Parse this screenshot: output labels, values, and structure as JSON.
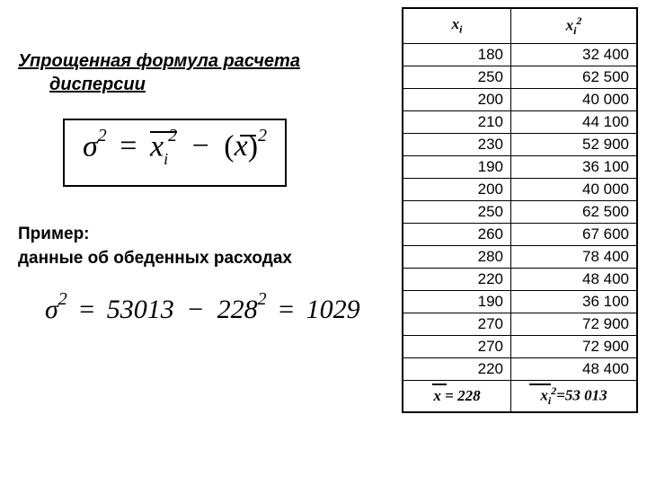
{
  "title_line1": "Упрощенная формула расчета",
  "title_line2": "дисперсии",
  "example_line1": "Пример:",
  "example_line2": "данные об обеденных расходах",
  "formula2": {
    "val1": "53013",
    "val2": "228",
    "result": "1029"
  },
  "table": {
    "header_xi": "x",
    "header_xi_sub": "i",
    "header_xi2": "x",
    "header_xi2_sub": "i",
    "header_xi2_sup": "2",
    "rows": [
      {
        "xi": "180",
        "xi2": "32 400"
      },
      {
        "xi": "250",
        "xi2": "62 500"
      },
      {
        "xi": "200",
        "xi2": "40 000"
      },
      {
        "xi": "210",
        "xi2": "44 100"
      },
      {
        "xi": "230",
        "xi2": "52 900"
      },
      {
        "xi": "190",
        "xi2": "36 100"
      },
      {
        "xi": "200",
        "xi2": "40 000"
      },
      {
        "xi": "250",
        "xi2": "62 500"
      },
      {
        "xi": "260",
        "xi2": "67 600"
      },
      {
        "xi": "280",
        "xi2": "78 400"
      },
      {
        "xi": "220",
        "xi2": "48 400"
      },
      {
        "xi": "190",
        "xi2": "36 100"
      },
      {
        "xi": "270",
        "xi2": "72 900"
      },
      {
        "xi": "270",
        "xi2": "72 900"
      },
      {
        "xi": "220",
        "xi2": "48 400"
      }
    ],
    "summary_mean_label": "x = ",
    "summary_mean_value": "228",
    "summary_sq_label_x": "x",
    "summary_sq_label_sub": "i",
    "summary_sq_label_sup": "2",
    "summary_sq_eq": "=",
    "summary_sq_value": "53 013"
  }
}
